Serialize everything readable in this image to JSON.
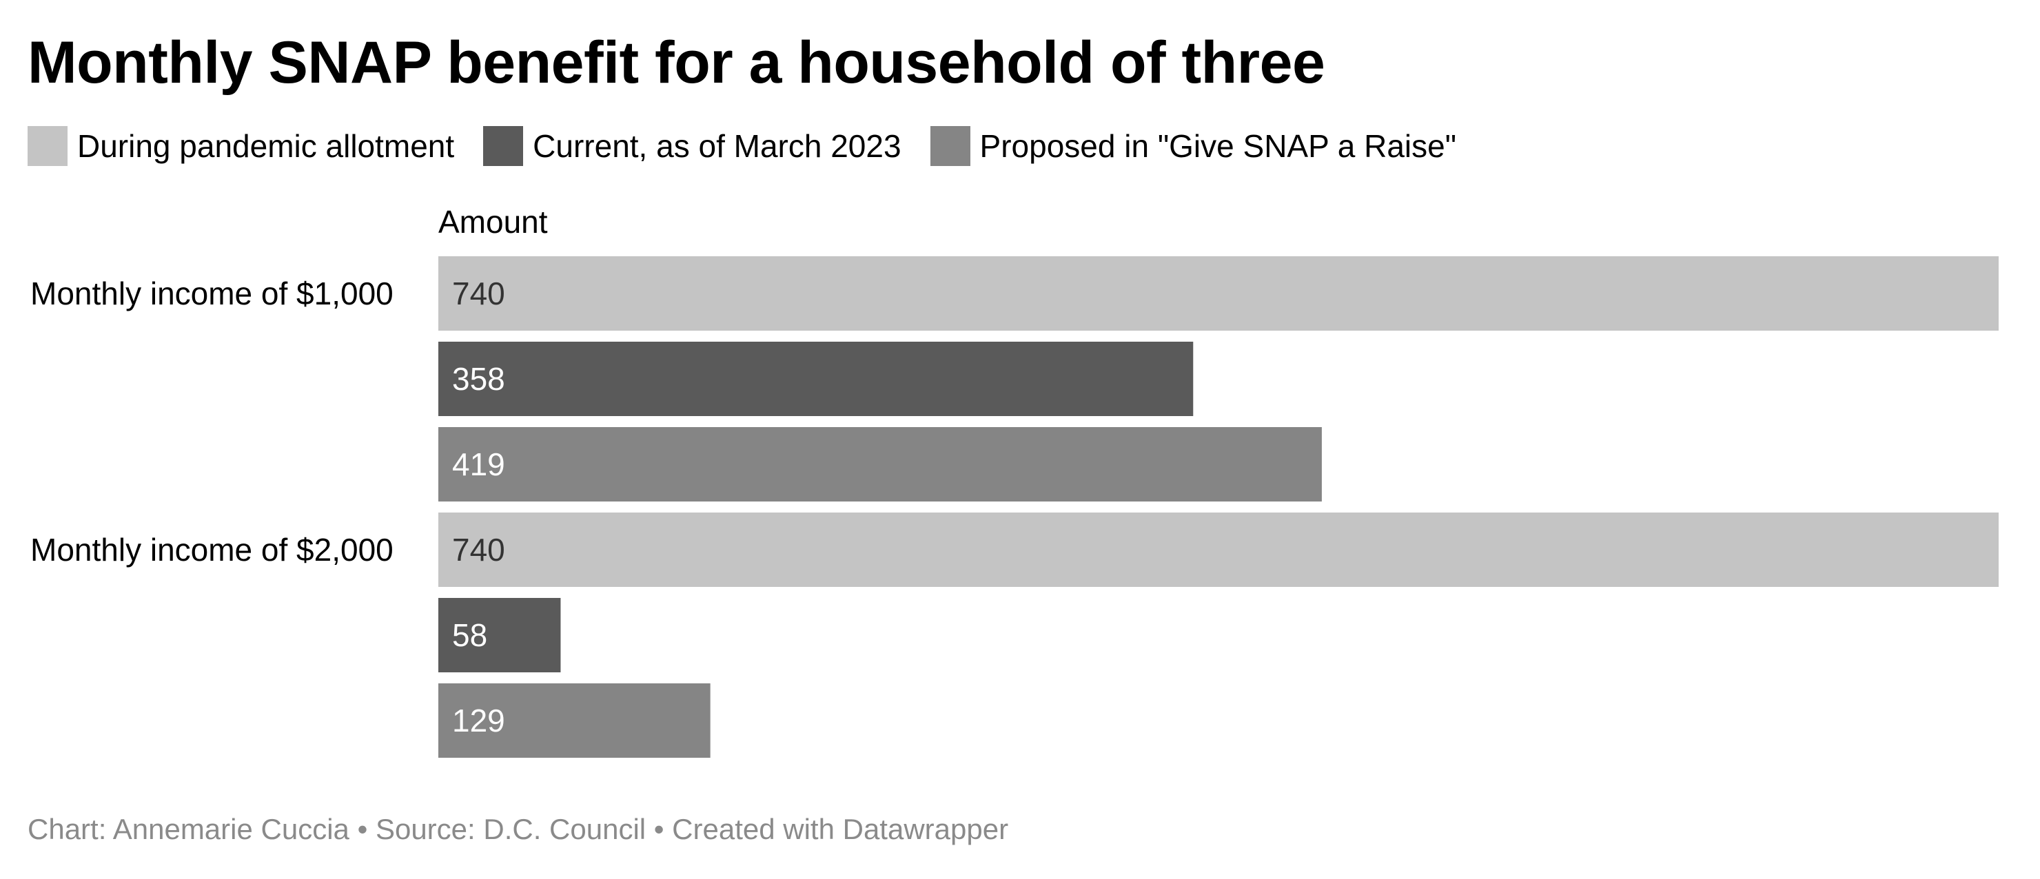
{
  "title": "Monthly SNAP benefit for a household of three",
  "legend": [
    {
      "label": "During pandemic allotment",
      "color": "#c4c4c4"
    },
    {
      "label": "Current, as of March 2023",
      "color": "#5a5a5a"
    },
    {
      "label": "Proposed in \"Give SNAP a Raise\"",
      "color": "#858585"
    }
  ],
  "footer": {
    "author": "Chart: Annemarie Cuccia",
    "source": "Source: D.C. Council",
    "tool": "Created with Datawrapper",
    "separator": "•"
  },
  "chart_data": {
    "type": "bar",
    "orientation": "horizontal",
    "title": "Monthly SNAP benefit for a household of three",
    "value_column_header": "Amount",
    "categories": [
      "Monthly income of $1,000",
      "Monthly income of $2,000"
    ],
    "series": [
      {
        "name": "During pandemic allotment",
        "color": "#c4c4c4",
        "label_color": "#333333",
        "values": [
          740,
          740
        ]
      },
      {
        "name": "Current, as of March 2023",
        "color": "#5a5a5a",
        "label_color": "#ffffff",
        "values": [
          358,
          58
        ]
      },
      {
        "name": "Proposed in \"Give SNAP a Raise\"",
        "color": "#858585",
        "label_color": "#ffffff",
        "values": [
          419,
          129
        ]
      }
    ],
    "xlim": [
      0,
      740
    ],
    "grid": false,
    "legend_position": "top-left",
    "data_labels": true
  }
}
